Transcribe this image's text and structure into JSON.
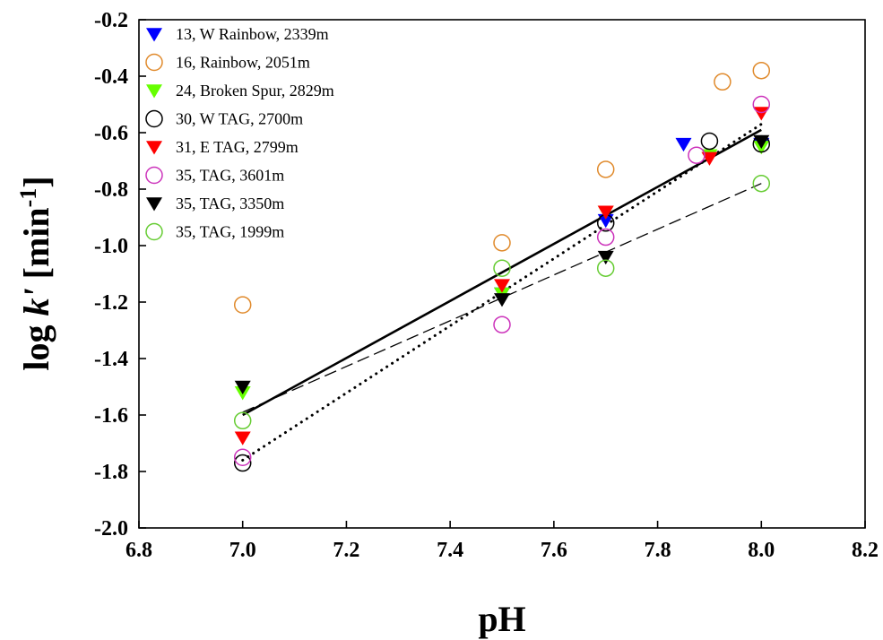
{
  "chart_data": {
    "type": "scatter",
    "xlabel": "pH",
    "ylabel_main": "log ",
    "ylabel_k": "k'",
    "ylabel_unit_open": " [min",
    "ylabel_sup": "-1",
    "ylabel_unit_close": "]",
    "xlim": [
      6.8,
      8.2
    ],
    "ylim": [
      -2.0,
      -0.2
    ],
    "xticks": [
      "6.8",
      "7.0",
      "7.2",
      "7.4",
      "7.6",
      "7.8",
      "8.0",
      "8.2"
    ],
    "yticks": [
      "-2.0",
      "-1.8",
      "-1.6",
      "-1.4",
      "-1.2",
      "-1.0",
      "-0.8",
      "-0.6",
      "-0.4",
      "-0.2"
    ],
    "legend_position": "top-left",
    "grid": false,
    "series": [
      {
        "name": "13, W Rainbow, 2339m",
        "marker": "triangle-down-filled",
        "color": "#0000ff",
        "points": [
          [
            7.5,
            -1.17
          ],
          [
            7.7,
            -0.91
          ],
          [
            7.85,
            -0.64
          ],
          [
            8.0,
            -0.64
          ]
        ]
      },
      {
        "name": "16, Rainbow, 2051m",
        "marker": "circle-open",
        "color": "#e08a2c",
        "points": [
          [
            7.0,
            -1.21
          ],
          [
            7.5,
            -0.99
          ],
          [
            7.7,
            -0.73
          ],
          [
            7.925,
            -0.42
          ],
          [
            8.0,
            -0.38
          ]
        ]
      },
      {
        "name": "24, Broken Spur, 2829m",
        "marker": "triangle-down-filled",
        "color": "#66ff00",
        "points": [
          [
            7.0,
            -1.52
          ],
          [
            7.5,
            -1.17
          ],
          [
            7.7,
            -0.88
          ],
          [
            7.9,
            -0.68
          ],
          [
            8.0,
            -0.65
          ]
        ]
      },
      {
        "name": "30, W TAG, 2700m",
        "marker": "circle-open",
        "color": "#000000",
        "points": [
          [
            7.0,
            -1.77
          ],
          [
            7.7,
            -0.92
          ],
          [
            7.9,
            -0.63
          ],
          [
            8.0,
            -0.64
          ]
        ]
      },
      {
        "name": "31, E TAG, 2799m",
        "marker": "triangle-down-filled",
        "color": "#ff0000",
        "points": [
          [
            7.0,
            -1.68
          ],
          [
            7.5,
            -1.14
          ],
          [
            7.7,
            -0.88
          ],
          [
            7.9,
            -0.69
          ],
          [
            8.0,
            -0.53
          ]
        ]
      },
      {
        "name": "35, TAG, 3601m",
        "marker": "circle-open",
        "color": "#cc33bb",
        "points": [
          [
            7.0,
            -1.75
          ],
          [
            7.5,
            -1.28
          ],
          [
            7.7,
            -0.97
          ],
          [
            7.875,
            -0.68
          ],
          [
            8.0,
            -0.5
          ]
        ]
      },
      {
        "name": "35, TAG, 3350m",
        "marker": "triangle-down-filled",
        "color": "#000000",
        "points": [
          [
            7.0,
            -1.5
          ],
          [
            7.5,
            -1.19
          ],
          [
            7.7,
            -1.04
          ],
          [
            8.0,
            -0.63
          ]
        ]
      },
      {
        "name": "35, TAG, 1999m",
        "marker": "circle-open",
        "color": "#66cc33",
        "points": [
          [
            7.0,
            -1.62
          ],
          [
            7.5,
            -1.08
          ],
          [
            7.7,
            -1.08
          ],
          [
            8.0,
            -0.78
          ]
        ]
      }
    ],
    "fit_lines": [
      {
        "style": "solid",
        "from": [
          7.0,
          -1.6
        ],
        "to": [
          8.0,
          -0.59
        ]
      },
      {
        "style": "dashed",
        "from": [
          7.0,
          -1.59
        ],
        "to": [
          8.0,
          -0.78
        ]
      },
      {
        "style": "dotted",
        "from": [
          7.0,
          -1.76
        ],
        "to": [
          8.0,
          -0.57
        ]
      }
    ]
  }
}
